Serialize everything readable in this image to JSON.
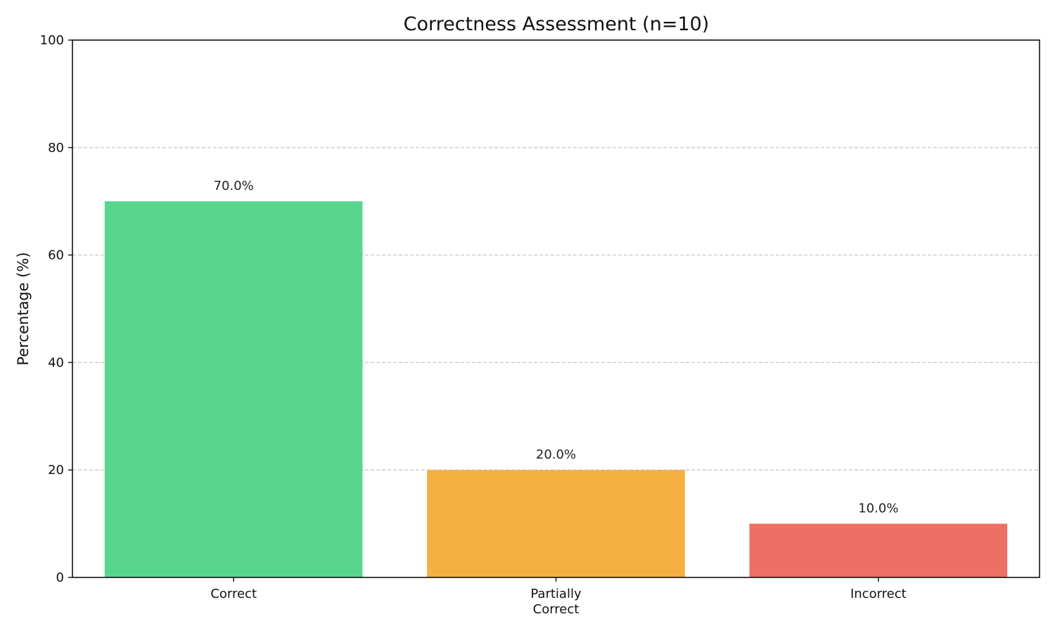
{
  "chart_data": {
    "type": "bar",
    "title": "Correctness Assessment (n=10)",
    "xlabel": "",
    "ylabel": "Percentage (%)",
    "categories": [
      [
        "Correct"
      ],
      [
        "Partially",
        "Correct"
      ],
      [
        "Incorrect"
      ]
    ],
    "values": [
      70.0,
      20.0,
      10.0
    ],
    "value_labels": [
      "70.0%",
      "20.0%",
      "10.0%"
    ],
    "colors": [
      "#58d68d",
      "#f5b041",
      "#ec7063"
    ],
    "ylim": [
      0,
      100
    ],
    "yticks": [
      0,
      20,
      40,
      60,
      80,
      100
    ],
    "grid": true,
    "legend": false
  }
}
